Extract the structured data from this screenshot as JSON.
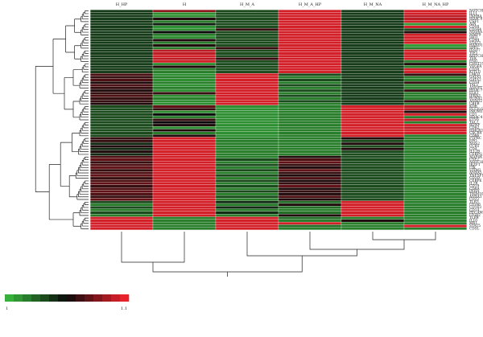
{
  "chart_data": {
    "type": "heatmap",
    "title": "",
    "columns": [
      "H_HP",
      "H",
      "H_M_A",
      "H_M_A_HP",
      "H_M_NA",
      "H_M_NA_HP"
    ],
    "rows": [
      "NOTCH2",
      "IL11",
      "INHBA",
      "HDAC8",
      "CSF1",
      "AIN",
      "CD58",
      "CD164",
      "NOS4A",
      "MMP9",
      "JAG1",
      "CD44",
      "STAT3",
      "HAND1",
      "SPP1",
      "IGSF7",
      "TIE1",
      "NOTCH1",
      "TEK",
      "ENG",
      "CHST15",
      "VEGFA",
      "CD38",
      "KITLG",
      "LMO2",
      "GATA1",
      "GATA2",
      "CD34",
      "TAL1",
      "ANGPT1",
      "HDAC7",
      "ELK1",
      "IFRN1",
      "RUNX1",
      "ANXO2",
      "CBFB",
      "KDR",
      "FLT3LG",
      "PROM1",
      "CD1",
      "HDAC4",
      "ETV6",
      "TAL2",
      "BDNF",
      "CD82",
      "HMOX1",
      "CXCR4",
      "CD86",
      "PTPRC",
      "EPO",
      "NOS2",
      "CCR1",
      "CD4",
      "IL12B",
      "CEBPG",
      "MAP4K1",
      "CSF2",
      "NOTCH4",
      "IKZF1",
      "ITK",
      "STIM2",
      "ANXA5",
      "TNFSF11",
      "CD3D",
      "CEBPE",
      "IL2R",
      "CD19",
      "CD8A",
      "INHA",
      "TRIM10",
      "ANXA1",
      "CD22",
      "TLR3",
      "ITGA6",
      "CD163",
      "CD14",
      "PECAM1",
      "ITGB2",
      "TLR4",
      "IL10",
      "MX1",
      "STAT5",
      "CD5L"
    ],
    "values": [
      [
        0.35,
        0.8,
        0.3,
        0.95,
        0.35,
        0.95
      ],
      [
        0.35,
        0.1,
        0.3,
        0.95,
        0.35,
        0.95
      ],
      [
        0.35,
        0.1,
        0.3,
        0.95,
        0.35,
        0.9
      ],
      [
        0.35,
        0.55,
        0.3,
        0.95,
        0.35,
        0.9
      ],
      [
        0.35,
        0.15,
        0.3,
        0.95,
        0.35,
        0.95
      ],
      [
        0.35,
        0.45,
        0.3,
        0.95,
        0.35,
        0.05
      ],
      [
        0.35,
        0.1,
        0.3,
        0.95,
        0.35,
        0.95
      ],
      [
        0.35,
        0.1,
        0.6,
        0.95,
        0.35,
        0.3
      ],
      [
        0.35,
        0.5,
        0.3,
        0.95,
        0.35,
        0.55
      ],
      [
        0.35,
        0.15,
        0.3,
        0.95,
        0.35,
        0.95
      ],
      [
        0.35,
        0.1,
        0.3,
        0.95,
        0.35,
        0.95
      ],
      [
        0.35,
        0.55,
        0.3,
        0.95,
        0.35,
        0.95
      ],
      [
        0.35,
        0.15,
        0.3,
        0.95,
        0.35,
        0.95
      ],
      [
        0.35,
        0.55,
        0.3,
        0.95,
        0.35,
        0.05
      ],
      [
        0.35,
        0.15,
        0.6,
        0.95,
        0.35,
        0.15
      ],
      [
        0.35,
        0.9,
        0.3,
        0.95,
        0.35,
        0.95
      ],
      [
        0.35,
        0.9,
        0.3,
        0.95,
        0.35,
        0.95
      ],
      [
        0.35,
        0.95,
        0.3,
        0.95,
        0.35,
        0.95
      ],
      [
        0.35,
        0.9,
        0.6,
        0.95,
        0.35,
        0.95
      ],
      [
        0.35,
        0.95,
        0.3,
        0.95,
        0.35,
        0.15
      ],
      [
        0.35,
        0.1,
        0.3,
        0.95,
        0.35,
        0.55
      ],
      [
        0.35,
        0.55,
        0.3,
        0.95,
        0.35,
        0.15
      ],
      [
        0.35,
        0.15,
        0.3,
        0.95,
        0.35,
        0.95
      ],
      [
        0.35,
        0.15,
        0.3,
        0.95,
        0.35,
        0.95
      ],
      [
        0.65,
        0.1,
        0.95,
        0.3,
        0.35,
        0.6
      ],
      [
        0.6,
        0.15,
        0.95,
        0.15,
        0.35,
        0.15
      ],
      [
        0.65,
        0.1,
        0.95,
        0.3,
        0.35,
        0.15
      ],
      [
        0.55,
        0.15,
        0.95,
        0.15,
        0.35,
        0.6
      ],
      [
        0.65,
        0.1,
        0.95,
        0.3,
        0.35,
        0.15
      ],
      [
        0.6,
        0.15,
        0.95,
        0.15,
        0.35,
        0.15
      ],
      [
        0.55,
        0.1,
        0.95,
        0.3,
        0.35,
        0.6
      ],
      [
        0.6,
        0.6,
        0.95,
        0.15,
        0.35,
        0.15
      ],
      [
        0.65,
        0.1,
        0.95,
        0.3,
        0.35,
        0.15
      ],
      [
        0.6,
        0.15,
        0.95,
        0.15,
        0.35,
        0.15
      ],
      [
        0.6,
        0.1,
        0.95,
        0.3,
        0.35,
        0.6
      ],
      [
        0.55,
        0.1,
        0.95,
        0.15,
        0.35,
        0.15
      ],
      [
        0.3,
        0.7,
        0.1,
        0.15,
        0.95,
        0.9
      ],
      [
        0.3,
        0.6,
        0.1,
        0.15,
        0.95,
        0.9
      ],
      [
        0.3,
        0.1,
        0.1,
        0.15,
        0.95,
        0.55
      ],
      [
        0.3,
        0.5,
        0.1,
        0.15,
        0.95,
        0.95
      ],
      [
        0.3,
        0.15,
        0.1,
        0.15,
        0.95,
        0.15
      ],
      [
        0.3,
        0.6,
        0.1,
        0.15,
        0.95,
        0.9
      ],
      [
        0.3,
        0.5,
        0.1,
        0.15,
        0.95,
        0.15
      ],
      [
        0.3,
        0.55,
        0.1,
        0.15,
        0.95,
        0.95
      ],
      [
        0.3,
        0.1,
        0.1,
        0.15,
        0.95,
        0.9
      ],
      [
        0.3,
        0.55,
        0.1,
        0.15,
        0.95,
        0.95
      ],
      [
        0.3,
        0.15,
        0.1,
        0.15,
        0.95,
        0.95
      ],
      [
        0.3,
        0.55,
        0.1,
        0.15,
        0.95,
        0.15
      ],
      [
        0.6,
        0.95,
        0.15,
        0.15,
        0.55,
        0.15
      ],
      [
        0.6,
        0.95,
        0.15,
        0.15,
        0.3,
        0.15
      ],
      [
        0.4,
        0.95,
        0.15,
        0.15,
        0.55,
        0.15
      ],
      [
        0.55,
        0.95,
        0.15,
        0.15,
        0.3,
        0.15
      ],
      [
        0.4,
        0.95,
        0.15,
        0.15,
        0.55,
        0.15
      ],
      [
        0.55,
        0.95,
        0.15,
        0.15,
        0.3,
        0.15
      ],
      [
        0.4,
        0.95,
        0.15,
        0.15,
        0.3,
        0.15
      ],
      [
        0.65,
        0.95,
        0.15,
        0.55,
        0.3,
        0.15
      ],
      [
        0.7,
        0.95,
        0.3,
        0.65,
        0.3,
        0.15
      ],
      [
        0.6,
        0.95,
        0.15,
        0.7,
        0.3,
        0.15
      ],
      [
        0.65,
        0.95,
        0.3,
        0.6,
        0.3,
        0.15
      ],
      [
        0.7,
        0.95,
        0.15,
        0.55,
        0.3,
        0.15
      ],
      [
        0.6,
        0.95,
        0.3,
        0.7,
        0.3,
        0.15
      ],
      [
        0.65,
        0.95,
        0.15,
        0.6,
        0.3,
        0.15
      ],
      [
        0.7,
        0.95,
        0.3,
        0.55,
        0.3,
        0.15
      ],
      [
        0.6,
        0.95,
        0.15,
        0.65,
        0.3,
        0.15
      ],
      [
        0.65,
        0.95,
        0.3,
        0.55,
        0.3,
        0.15
      ],
      [
        0.7,
        0.95,
        0.15,
        0.6,
        0.3,
        0.15
      ],
      [
        0.6,
        0.95,
        0.3,
        0.7,
        0.3,
        0.15
      ],
      [
        0.65,
        0.95,
        0.15,
        0.55,
        0.3,
        0.15
      ],
      [
        0.7,
        0.95,
        0.3,
        0.6,
        0.3,
        0.15
      ],
      [
        0.65,
        0.95,
        0.15,
        0.55,
        0.3,
        0.15
      ],
      [
        0.6,
        0.95,
        0.3,
        0.65,
        0.3,
        0.15
      ],
      [
        0.7,
        0.95,
        0.15,
        0.55,
        0.3,
        0.15
      ],
      [
        0.3,
        0.95,
        0.4,
        0.2,
        0.95,
        0.15
      ],
      [
        0.15,
        0.95,
        0.15,
        0.55,
        0.95,
        0.15
      ],
      [
        0.3,
        0.95,
        0.4,
        0.2,
        0.95,
        0.15
      ],
      [
        0.15,
        0.95,
        0.15,
        0.15,
        0.95,
        0.15
      ],
      [
        0.3,
        0.95,
        0.4,
        0.2,
        0.95,
        0.15
      ],
      [
        0.15,
        0.95,
        0.15,
        0.55,
        0.95,
        0.15
      ],
      [
        0.95,
        0.15,
        0.95,
        0.2,
        0.15,
        0.15
      ],
      [
        0.95,
        0.15,
        0.95,
        0.15,
        0.55,
        0.15
      ],
      [
        0.95,
        0.15,
        0.95,
        0.95,
        0.15,
        0.15
      ],
      [
        0.95,
        0.15,
        0.95,
        0.2,
        0.15,
        0.95
      ],
      [
        0.95,
        0.15,
        0.95,
        0.15,
        0.15,
        0.15
      ]
    ],
    "colorscale": [
      "#36b03b",
      "#0a0a0a",
      "#e8212b"
    ],
    "colorbar": {
      "min_label": "1",
      "max_label": "1.1"
    },
    "grid": false,
    "legend": "bottom-left"
  }
}
